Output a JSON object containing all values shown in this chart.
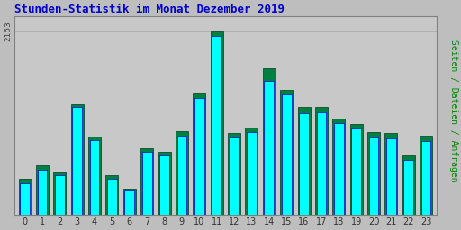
{
  "title": "Stunden-Statistik im Monat Dezember 2019",
  "title_color": "#0000cc",
  "ylabel": "Seiten / Dateien / Anfragen",
  "ylabel_color": "#008800",
  "categories": [
    0,
    1,
    2,
    3,
    4,
    5,
    6,
    7,
    8,
    9,
    10,
    11,
    12,
    13,
    14,
    15,
    16,
    17,
    18,
    19,
    20,
    21,
    22,
    23
  ],
  "values_back": [
    420,
    580,
    510,
    1300,
    920,
    460,
    310,
    780,
    740,
    980,
    1420,
    2153,
    960,
    1020,
    1720,
    1470,
    1260,
    1260,
    1130,
    1060,
    970,
    960,
    700,
    930
  ],
  "values_front": [
    370,
    530,
    460,
    1270,
    870,
    420,
    290,
    740,
    700,
    930,
    1370,
    2100,
    910,
    970,
    1570,
    1410,
    1190,
    1200,
    1080,
    1010,
    910,
    900,
    640,
    860
  ],
  "bar_color_back": "#008040",
  "bar_color_front": "#00ffff",
  "bar_edge_color_back": "#003820",
  "bar_edge_color_front": "#0000cc",
  "bg_color": "#bebebe",
  "plot_bg_color": "#c8c8c8",
  "grid_color": "#b0b0b0",
  "ymax": 2153,
  "ytick_label": "2153",
  "title_fontsize": 9,
  "ylabel_fontsize": 7
}
